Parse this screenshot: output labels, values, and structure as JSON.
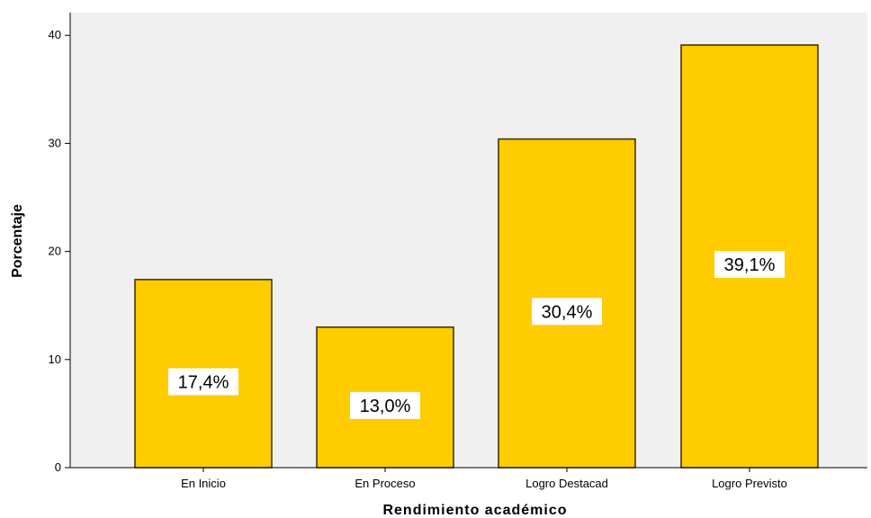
{
  "chart_data": {
    "type": "bar",
    "categories": [
      "En Inicio",
      "En Proceso",
      "Logro Destacad",
      "Logro Previsto"
    ],
    "values": [
      17.4,
      13.0,
      30.4,
      39.1
    ],
    "data_labels": [
      "17,4%",
      "13,0%",
      "30,4%",
      "39,1%"
    ],
    "xlabel": "Rendimiento académico",
    "ylabel": "Porcentaje",
    "ylim": [
      0,
      40
    ],
    "yticks": [
      0,
      10,
      20,
      30,
      40
    ],
    "grid": false,
    "colors": {
      "bar_fill": "#FFCC00",
      "bar_stroke": "#3a2a00",
      "plot_background": "#F0F0F0",
      "label_background": "#FFFFFF"
    }
  }
}
